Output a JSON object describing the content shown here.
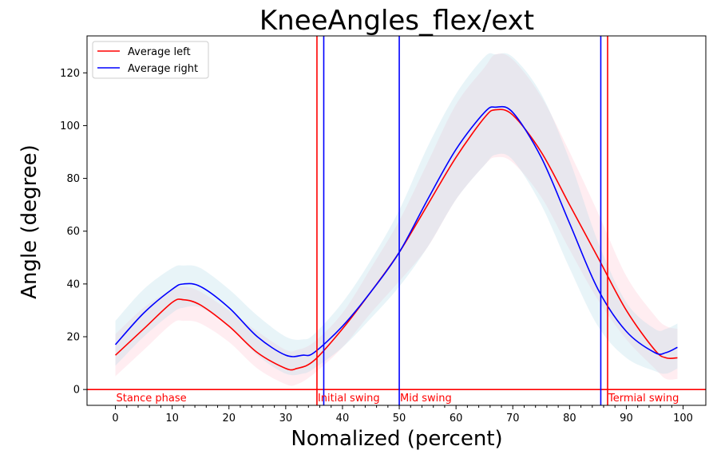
{
  "chart_data": {
    "type": "line",
    "title": "KneeAngles_flex/ext",
    "xlabel": "Nomalized (percent)",
    "ylabel": "Angle (degree)",
    "xlim": [
      -5,
      104
    ],
    "ylim": [
      -6,
      134
    ],
    "xticks": [
      0,
      10,
      20,
      30,
      40,
      50,
      60,
      70,
      80,
      90,
      100
    ],
    "yticks": [
      0,
      20,
      40,
      60,
      80,
      100,
      120
    ],
    "grid": false,
    "legend": "top-left",
    "colors": {
      "left": "#ff0000",
      "right": "#0000ff",
      "left_band": "#ffc0cb",
      "right_band": "#add8e6"
    },
    "series": [
      {
        "name": "Average left",
        "color": "#ff0000",
        "x": [
          0,
          5,
          10,
          12,
          15,
          20,
          25,
          30,
          32,
          35,
          40,
          45,
          50,
          55,
          60,
          65,
          67,
          70,
          75,
          80,
          85,
          90,
          95,
          97,
          99
        ],
        "y": [
          13,
          23,
          33,
          34,
          32,
          24,
          14,
          8,
          8,
          11,
          23,
          37,
          52,
          70,
          88,
          103,
          106,
          104,
          90,
          70,
          50,
          30,
          15,
          12,
          12
        ],
        "upper": [
          21,
          31,
          38,
          39,
          37,
          30,
          22,
          15,
          15,
          18,
          29,
          46,
          64,
          86,
          108,
          122,
          127,
          125,
          111,
          90,
          67,
          43,
          28,
          24,
          23
        ],
        "lower": [
          5,
          15,
          25,
          26,
          25,
          18,
          8,
          2,
          2,
          6,
          16,
          29,
          41,
          54,
          72,
          85,
          88,
          86,
          73,
          53,
          34,
          19,
          8,
          4,
          4
        ]
      },
      {
        "name": "Average right",
        "color": "#0000ff",
        "x": [
          0,
          5,
          10,
          12,
          15,
          20,
          25,
          30,
          33,
          35,
          40,
          45,
          50,
          55,
          60,
          65,
          67,
          70,
          75,
          80,
          85,
          90,
          95,
          97,
          99
        ],
        "y": [
          17,
          29,
          38,
          40,
          39,
          31,
          20,
          13,
          13,
          14,
          24,
          37,
          52,
          72,
          91,
          105,
          107,
          105,
          88,
          63,
          38,
          22,
          14,
          14,
          16
        ],
        "upper": [
          26,
          38,
          46,
          47,
          46,
          38,
          28,
          20,
          19,
          21,
          33,
          49,
          68,
          92,
          112,
          126,
          127,
          126,
          112,
          87,
          56,
          33,
          23,
          23,
          25
        ],
        "lower": [
          9,
          20,
          29,
          31,
          31,
          24,
          13,
          6,
          6,
          8,
          16,
          27,
          39,
          54,
          72,
          85,
          89,
          87,
          70,
          46,
          24,
          12,
          7,
          6,
          8
        ]
      }
    ],
    "vertical_lines": [
      {
        "x": 35.5,
        "color": "#ff0000"
      },
      {
        "x": 36.7,
        "color": "#0000ff"
      },
      {
        "x": 50.0,
        "color": "#0000ff"
      },
      {
        "x": 85.5,
        "color": "#0000ff"
      },
      {
        "x": 86.7,
        "color": "#ff0000"
      }
    ],
    "horizontal_line": {
      "y": 0,
      "color": "#ff0000"
    },
    "phase_labels": [
      {
        "text": "Stance phase",
        "x": 0
      },
      {
        "text": "Initial swing",
        "x": 35.5
      },
      {
        "text": "Mid swing",
        "x": 50.0
      },
      {
        "text": "Termial swing",
        "x": 86.7
      }
    ]
  }
}
